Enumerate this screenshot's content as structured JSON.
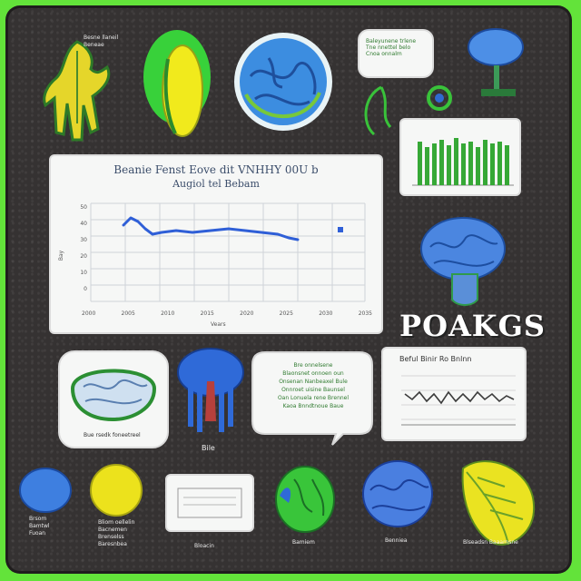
{
  "colors": {
    "frame": "#63e33a",
    "board": "#353232",
    "line": "#2f5fd7",
    "bar": "#36a836"
  },
  "main_chart": {
    "title_line1": "Beanie Fenst Eove dit VNHHY 00U b",
    "title_line2": "Augiol tel Bebam",
    "y_ticks": [
      "50",
      "40",
      "30",
      "20",
      "10",
      "0"
    ],
    "x_ticks": [
      "2000",
      "2005",
      "2010",
      "2015",
      "2020",
      "2025",
      "2030",
      "2035"
    ],
    "xlabel": "Vears",
    "ylabel": "Bay"
  },
  "headline": "POAKGS",
  "small_line_chart_title": "Beful Binir Ro Bnlnn",
  "note_top": {
    "lines": [
      "Baleyunene trlene",
      "Tne nnettel belo",
      "Cnoa onnalm"
    ]
  },
  "speech_bubble": {
    "lines": [
      "Bre onnelsene",
      "Blaonsnet onnoen oun",
      "Onsenan Nanbeaxel Bule",
      "Onnroet uisine Baunsel",
      "Oan Lonuela rene Brennel",
      "Kaoa Bnndtnoue Baue"
    ]
  },
  "captions": {
    "plant_top": "Besne llaneil Beneae",
    "brain_card": "Bue rsedk foneetreel",
    "anatomy": "Bile",
    "blob_blue": [
      "Brsom",
      "Bamtwl",
      "Fuoan"
    ],
    "blob_yellow": [
      "Bliom oellelin",
      "Bacnemen",
      "Brenselss",
      "Baresnbea"
    ],
    "small_card": "Bloacin",
    "green_brain": "Bamiem",
    "blue_brain": "Benniea",
    "leaf": "Blseadsn Baaarnsne"
  }
}
